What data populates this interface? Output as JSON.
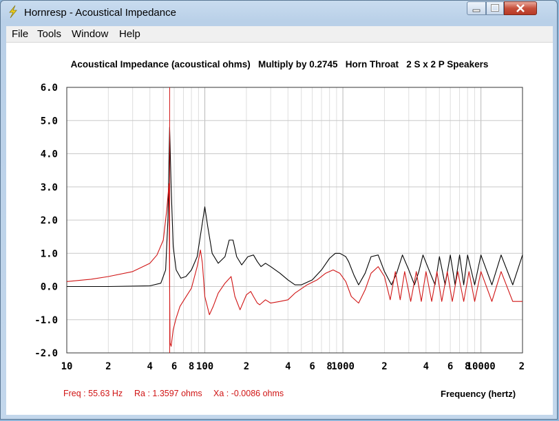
{
  "window": {
    "title": "Hornresp - Acoustical Impedance"
  },
  "menu": {
    "file": "File",
    "tools": "Tools",
    "window": "Window",
    "help": "Help"
  },
  "chart_title": "Acoustical Impedance (acoustical ohms)   Multiply by 0.2745   Horn Throat   2 S x 2 P Speakers",
  "readout": {
    "freq": "Freq : 55.63 Hz",
    "ra": "Ra : 1.3597 ohms",
    "xa": "Xa : -0.0086 ohms"
  },
  "colors": {
    "ra": "#000000",
    "xa": "#d01414",
    "cursor": "#d01414",
    "grid": "#c8c8c8"
  },
  "chart_data": {
    "type": "line",
    "title": "Acoustical Impedance (acoustical ohms)   Multiply by 0.2745   Horn Throat   2 S x 2 P Speakers",
    "xlabel": "Frequency (hertz)",
    "ylabel": "",
    "xscale": "log",
    "xlim": [
      10,
      20000
    ],
    "ylim": [
      -2,
      6
    ],
    "grid": true,
    "y_tick_labels": [
      "6.0",
      "5.0",
      "4.0",
      "3.0",
      "2.0",
      "1.0",
      "0.0",
      "-1.0",
      "-2.0"
    ],
    "x_tick_labels": [
      "10",
      "2",
      "4",
      "6",
      "8",
      "100",
      "2",
      "4",
      "6",
      "8",
      "1000",
      "2",
      "4",
      "6",
      "8",
      "10000",
      "2"
    ],
    "cursor_frequency": 55.63,
    "series": [
      {
        "name": "Ra",
        "x": [
          10,
          20,
          40,
          48,
          52,
          54,
          55.6,
          57,
          59,
          62,
          67,
          73,
          80,
          88,
          95,
          100,
          105,
          113,
          125,
          140,
          150,
          160,
          170,
          185,
          205,
          225,
          240,
          255,
          275,
          300,
          350,
          400,
          450,
          500,
          600,
          700,
          800,
          880,
          950,
          1000,
          1050,
          1100,
          1200,
          1300,
          1450,
          1600,
          1800,
          2000,
          2250,
          2450,
          2700,
          3000,
          3300,
          3550,
          3800,
          4200,
          4650,
          5000,
          5500,
          6000,
          6500,
          7000,
          7500,
          8000,
          9000,
          10000,
          12000,
          14000,
          17000,
          20000
        ],
        "values": [
          0,
          0,
          0.02,
          0.1,
          0.5,
          2.0,
          4.8,
          3.0,
          1.2,
          0.5,
          0.25,
          0.3,
          0.5,
          0.9,
          1.8,
          2.4,
          1.8,
          1.0,
          0.7,
          0.9,
          1.4,
          1.4,
          0.9,
          0.65,
          0.9,
          0.95,
          0.75,
          0.6,
          0.7,
          0.6,
          0.4,
          0.2,
          0.05,
          0.05,
          0.2,
          0.5,
          0.85,
          1.0,
          1.0,
          0.95,
          0.9,
          0.75,
          0.35,
          0.05,
          0.4,
          0.9,
          0.95,
          0.45,
          0.05,
          0.4,
          0.95,
          0.5,
          0.05,
          0.45,
          0.95,
          0.5,
          0.05,
          0.9,
          0.05,
          0.95,
          0.05,
          0.95,
          0.05,
          0.95,
          0.05,
          0.95,
          0.05,
          0.95,
          0.05,
          0.95
        ]
      },
      {
        "name": "Xa",
        "x": [
          10,
          15,
          20,
          30,
          40,
          45,
          50,
          53,
          55,
          55.6,
          56,
          57,
          59,
          62,
          66,
          72,
          80,
          88,
          93,
          96,
          100,
          108,
          115,
          125,
          140,
          155,
          165,
          180,
          200,
          215,
          225,
          240,
          250,
          275,
          300,
          350,
          400,
          450,
          550,
          650,
          750,
          850,
          950,
          1050,
          1150,
          1300,
          1450,
          1600,
          1800,
          2000,
          2200,
          2400,
          2600,
          2800,
          3100,
          3400,
          3700,
          4000,
          4400,
          4800,
          5200,
          5700,
          6200,
          6800,
          7500,
          8200,
          9000,
          10000,
          12000,
          14000,
          17000,
          20000
        ],
        "values": [
          0.15,
          0.22,
          0.3,
          0.45,
          0.7,
          0.95,
          1.4,
          2.3,
          3.1,
          0,
          -1.7,
          -1.8,
          -1.3,
          -0.95,
          -0.6,
          -0.35,
          -0.05,
          0.6,
          1.1,
          0.7,
          -0.3,
          -0.85,
          -0.6,
          -0.2,
          0.1,
          0.3,
          -0.3,
          -0.7,
          -0.25,
          -0.15,
          -0.3,
          -0.5,
          -0.55,
          -0.4,
          -0.5,
          -0.45,
          -0.4,
          -0.2,
          0.05,
          0.2,
          0.4,
          0.5,
          0.4,
          0.15,
          -0.3,
          -0.5,
          -0.1,
          0.4,
          0.6,
          0.3,
          -0.4,
          0.45,
          -0.4,
          0.45,
          -0.45,
          0.45,
          -0.45,
          0.45,
          -0.45,
          0.45,
          -0.45,
          0.45,
          -0.45,
          0.45,
          -0.45,
          0.45,
          -0.45,
          0.45,
          -0.45,
          0.45,
          -0.45,
          -0.45
        ]
      }
    ]
  }
}
